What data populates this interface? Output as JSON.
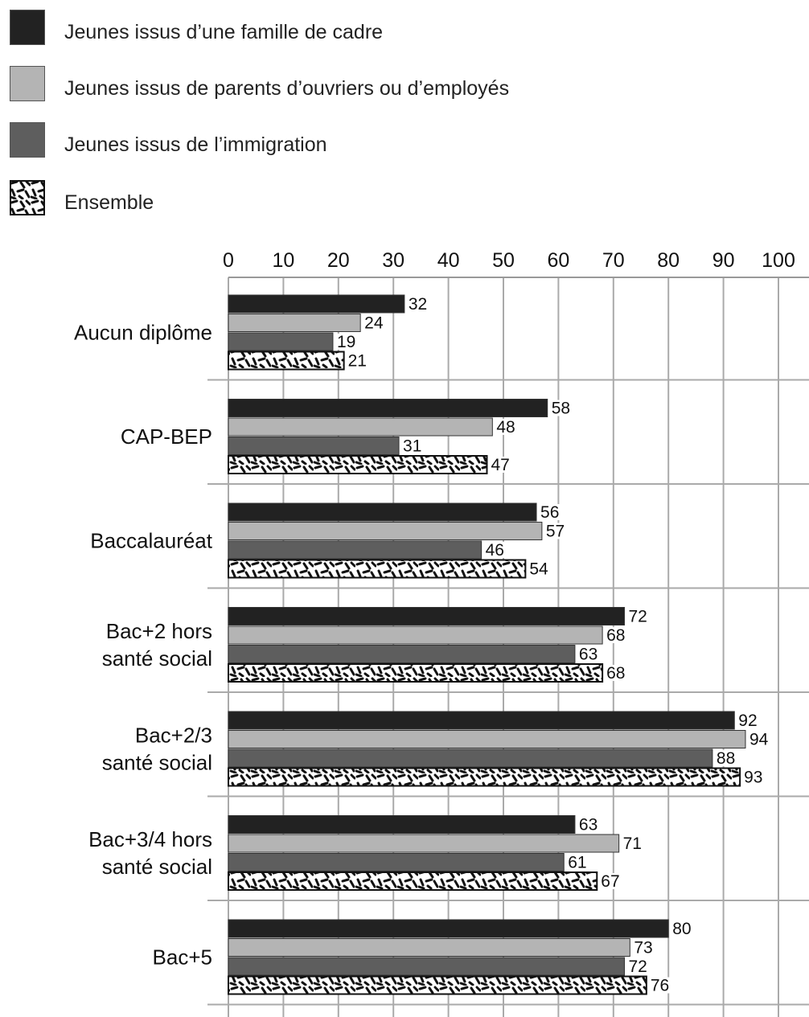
{
  "chart_data": {
    "type": "bar",
    "orientation": "horizontal",
    "categories": [
      [
        "Aucun diplôme"
      ],
      [
        "CAP-BEP"
      ],
      [
        "Baccalauréat"
      ],
      [
        "Bac+2 hors",
        "santé social"
      ],
      [
        "Bac+2/3",
        "santé social"
      ],
      [
        "Bac+3/4 hors",
        "santé social"
      ],
      [
        "Bac+5"
      ]
    ],
    "series": [
      {
        "name": "Jeunes issus d’une famille de cadre",
        "color": "#222222",
        "pattern": "solid",
        "values": [
          32,
          58,
          56,
          72,
          92,
          63,
          80
        ]
      },
      {
        "name": "Jeunes issus de parents d’ouvriers ou d’employés",
        "color": "#b4b4b4",
        "pattern": "solid",
        "values": [
          24,
          48,
          57,
          68,
          94,
          71,
          73
        ]
      },
      {
        "name": "Jeunes issus de l’immigration",
        "color": "#5e5e5e",
        "pattern": "solid",
        "values": [
          19,
          31,
          46,
          63,
          88,
          61,
          72
        ]
      },
      {
        "name": "Ensemble",
        "color": "#111111",
        "pattern": "dashes",
        "values": [
          21,
          47,
          54,
          68,
          93,
          67,
          76
        ]
      }
    ],
    "xlim": [
      0,
      100
    ],
    "xticks": [
      0,
      10,
      20,
      30,
      40,
      50,
      60,
      70,
      80,
      90,
      100
    ],
    "grid": true,
    "legend": "top-left"
  }
}
